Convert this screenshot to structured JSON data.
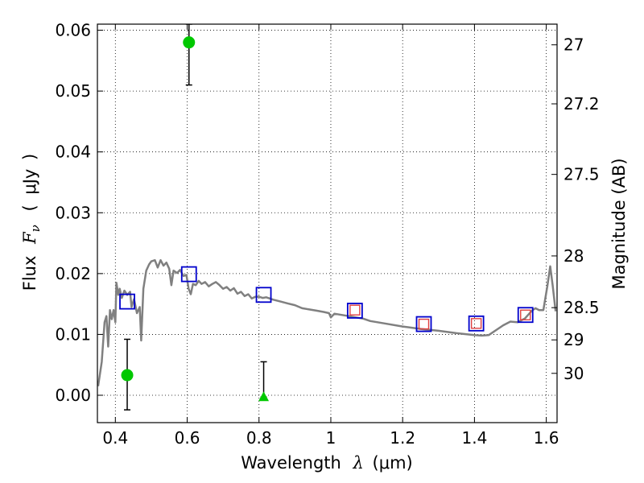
{
  "chart_data": {
    "type": "scatter",
    "xlabel_prefix": "Wavelength",
    "xlabel_math": "λ",
    "xlabel_suffix": "(μm)",
    "ylabel_prefix": "Flux",
    "ylabel_math_main": "F",
    "ylabel_math_sub": "ν",
    "ylabel_suffix_open": "(",
    "ylabel_suffix_unit": "μJy",
    "ylabel_suffix_close": ")",
    "y2label": "Magnitude (AB)",
    "xlim": [
      0.35,
      1.63
    ],
    "ylim": [
      -0.0045,
      0.061
    ],
    "grid": true,
    "x_ticks": [
      {
        "value": 0.4,
        "label": "0.4"
      },
      {
        "value": 0.6,
        "label": "0.6"
      },
      {
        "value": 0.8,
        "label": "0.8"
      },
      {
        "value": 1.0,
        "label": "1"
      },
      {
        "value": 1.2,
        "label": "1.2"
      },
      {
        "value": 1.4,
        "label": "1.4"
      },
      {
        "value": 1.6,
        "label": "1.6"
      }
    ],
    "y_ticks": [
      {
        "value": 0.0,
        "label": "0.00"
      },
      {
        "value": 0.01,
        "label": "0.01"
      },
      {
        "value": 0.02,
        "label": "0.02"
      },
      {
        "value": 0.03,
        "label": "0.03"
      },
      {
        "value": 0.04,
        "label": "0.04"
      },
      {
        "value": 0.05,
        "label": "0.05"
      },
      {
        "value": 0.06,
        "label": "0.06"
      }
    ],
    "y2_ticks": [
      {
        "flux": 0.0576,
        "label": "27"
      },
      {
        "flux": 0.0479,
        "label": "27.2"
      },
      {
        "flux": 0.0363,
        "label": "27.5"
      },
      {
        "flux": 0.0229,
        "label": "28"
      },
      {
        "flux": 0.0144,
        "label": "28.5"
      },
      {
        "flux": 0.0091,
        "label": "29"
      },
      {
        "flux": 0.0036,
        "label": "30"
      }
    ],
    "model_sed": {
      "color": "#808080",
      "points": [
        [
          0.352,
          0.0015
        ],
        [
          0.362,
          0.0055
        ],
        [
          0.37,
          0.012
        ],
        [
          0.375,
          0.013
        ],
        [
          0.38,
          0.008
        ],
        [
          0.385,
          0.014
        ],
        [
          0.39,
          0.0125
        ],
        [
          0.395,
          0.014
        ],
        [
          0.4,
          0.012
        ],
        [
          0.403,
          0.0185
        ],
        [
          0.408,
          0.0165
        ],
        [
          0.412,
          0.0175
        ],
        [
          0.418,
          0.016
        ],
        [
          0.425,
          0.0172
        ],
        [
          0.433,
          0.0165
        ],
        [
          0.441,
          0.017
        ],
        [
          0.445,
          0.0145
        ],
        [
          0.452,
          0.0158
        ],
        [
          0.46,
          0.0135
        ],
        [
          0.468,
          0.0145
        ],
        [
          0.472,
          0.009
        ],
        [
          0.478,
          0.0175
        ],
        [
          0.486,
          0.0205
        ],
        [
          0.494,
          0.0215
        ],
        [
          0.5,
          0.022
        ],
        [
          0.51,
          0.0222
        ],
        [
          0.518,
          0.021
        ],
        [
          0.526,
          0.0222
        ],
        [
          0.534,
          0.0213
        ],
        [
          0.542,
          0.0218
        ],
        [
          0.55,
          0.0208
        ],
        [
          0.556,
          0.0181
        ],
        [
          0.562,
          0.0205
        ],
        [
          0.572,
          0.0201
        ],
        [
          0.58,
          0.0206
        ],
        [
          0.59,
          0.0196
        ],
        [
          0.598,
          0.0198
        ],
        [
          0.604,
          0.0175
        ],
        [
          0.61,
          0.0166
        ],
        [
          0.616,
          0.0183
        ],
        [
          0.624,
          0.0181
        ],
        [
          0.632,
          0.0188
        ],
        [
          0.64,
          0.0183
        ],
        [
          0.65,
          0.0186
        ],
        [
          0.66,
          0.0179
        ],
        [
          0.67,
          0.0183
        ],
        [
          0.68,
          0.0186
        ],
        [
          0.69,
          0.0181
        ],
        [
          0.7,
          0.0175
        ],
        [
          0.71,
          0.0178
        ],
        [
          0.72,
          0.0172
        ],
        [
          0.73,
          0.0176
        ],
        [
          0.74,
          0.0167
        ],
        [
          0.75,
          0.017
        ],
        [
          0.76,
          0.0163
        ],
        [
          0.77,
          0.0166
        ],
        [
          0.78,
          0.0159
        ],
        [
          0.79,
          0.0162
        ],
        [
          0.8,
          0.0162
        ],
        [
          0.81,
          0.016
        ],
        [
          0.82,
          0.0161
        ],
        [
          0.84,
          0.0157
        ],
        [
          0.86,
          0.0154
        ],
        [
          0.88,
          0.0151
        ],
        [
          0.9,
          0.0148
        ],
        [
          0.92,
          0.0143
        ],
        [
          0.94,
          0.0141
        ],
        [
          0.96,
          0.0139
        ],
        [
          0.98,
          0.0137
        ],
        [
          0.995,
          0.0135
        ],
        [
          1.0,
          0.0128
        ],
        [
          1.01,
          0.0134
        ],
        [
          1.03,
          0.0132
        ],
        [
          1.05,
          0.013
        ],
        [
          1.07,
          0.0128
        ],
        [
          1.09,
          0.0126
        ],
        [
          1.11,
          0.0122
        ],
        [
          1.13,
          0.012
        ],
        [
          1.15,
          0.0118
        ],
        [
          1.2,
          0.0113
        ],
        [
          1.25,
          0.0109
        ],
        [
          1.3,
          0.0106
        ],
        [
          1.35,
          0.0102
        ],
        [
          1.4,
          0.0099
        ],
        [
          1.42,
          0.0098
        ],
        [
          1.44,
          0.0099
        ],
        [
          1.46,
          0.0107
        ],
        [
          1.48,
          0.0115
        ],
        [
          1.5,
          0.0121
        ],
        [
          1.52,
          0.012
        ],
        [
          1.54,
          0.0126
        ],
        [
          1.56,
          0.0139
        ],
        [
          1.57,
          0.0143
        ],
        [
          1.58,
          0.014
        ],
        [
          1.592,
          0.014
        ],
        [
          1.603,
          0.018
        ],
        [
          1.611,
          0.0212
        ],
        [
          1.618,
          0.018
        ],
        [
          1.626,
          0.0138
        ]
      ]
    },
    "observed_points": {
      "color": "#00c800",
      "points": [
        {
          "x": 0.433,
          "y": 0.0033,
          "yerr_low": 0.0057,
          "yerr_high": 0.0059
        },
        {
          "x": 0.605,
          "y": 0.058,
          "yerr_low": 0.007,
          "yerr_high": 0.003
        }
      ]
    },
    "upper_limits": {
      "color": "#00c800",
      "points": [
        {
          "x": 0.813,
          "y": -0.0003,
          "yerr_low": 0.0,
          "yerr_high": 0.0058
        }
      ]
    },
    "model_photometry_blue": {
      "color": "#0000cc",
      "points": [
        {
          "x": 0.433,
          "y": 0.0154
        },
        {
          "x": 0.605,
          "y": 0.0199
        },
        {
          "x": 0.813,
          "y": 0.0165
        },
        {
          "x": 1.067,
          "y": 0.0139
        },
        {
          "x": 1.259,
          "y": 0.0117
        },
        {
          "x": 1.405,
          "y": 0.0118
        },
        {
          "x": 1.542,
          "y": 0.0132
        }
      ]
    },
    "model_photometry_red": {
      "color": "#e04040",
      "points": [
        {
          "x": 1.067,
          "y": 0.014
        },
        {
          "x": 1.259,
          "y": 0.0117
        },
        {
          "x": 1.405,
          "y": 0.0118
        },
        {
          "x": 1.542,
          "y": 0.0132
        }
      ]
    }
  }
}
